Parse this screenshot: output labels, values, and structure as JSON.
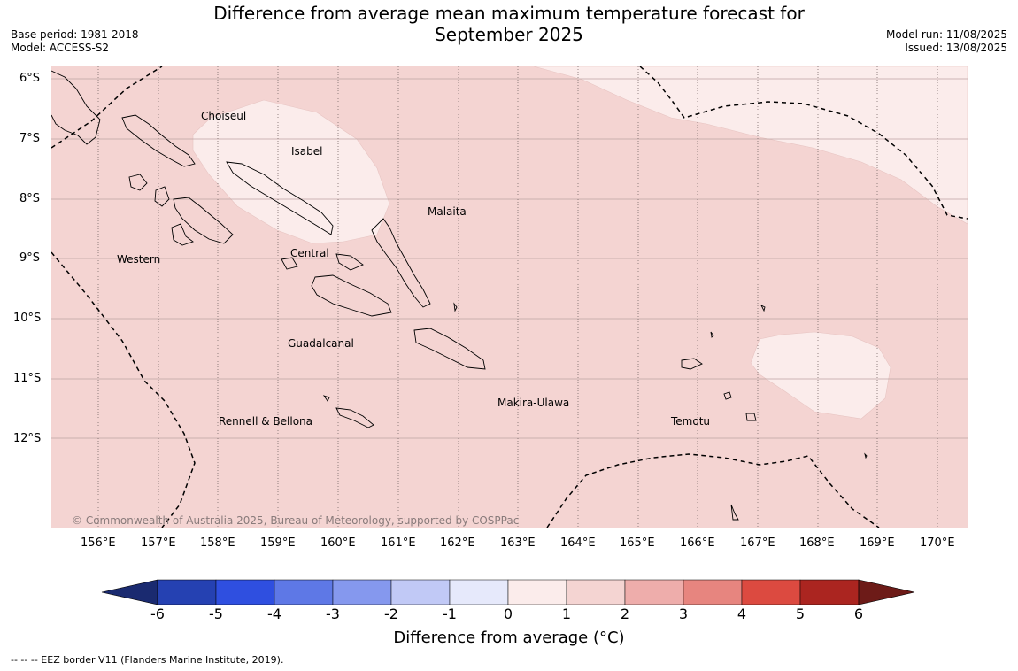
{
  "header": {
    "title_line1": "Difference from average mean maximum temperature forecast for",
    "title_line2": "September 2025",
    "base_period": "Base period: 1981-2018",
    "model": "Model: ACCESS-S2",
    "model_run": "Model run: 11/08/2025",
    "issued": "Issued: 13/08/2025"
  },
  "map": {
    "lat_labels": [
      "6°S",
      "7°S",
      "8°S",
      "9°S",
      "10°S",
      "11°S",
      "12°S"
    ],
    "lon_labels": [
      "156°E",
      "157°E",
      "158°E",
      "159°E",
      "160°E",
      "161°E",
      "162°E",
      "163°E",
      "164°E",
      "165°E",
      "166°E",
      "167°E",
      "168°E",
      "169°E",
      "170°E"
    ],
    "provinces": {
      "choiseul": "Choiseul",
      "isabel": "Isabel",
      "malaita": "Malaita",
      "western": "Western",
      "central": "Central",
      "guadalcanal": "Guadalcanal",
      "makira": "Makira-Ulawa",
      "temotu": "Temotu",
      "rennell": "Rennell & Bellona"
    },
    "copyright": "© Commonwealth of Australia 2025, Bureau of Meteorology, supported by COSPPac",
    "colors": {
      "anomaly_1_2": "#f4d4d2",
      "anomaly_0_1": "#fbeceb"
    }
  },
  "legend": {
    "ticks": [
      "-6",
      "-5",
      "-4",
      "-3",
      "-2",
      "-1",
      "0",
      "1",
      "2",
      "3",
      "4",
      "5",
      "6"
    ],
    "colors": [
      "#1a2a70",
      "#2541b2",
      "#2f4fe0",
      "#5e78e6",
      "#8598ee",
      "#c1c9f6",
      "#e6e9fb",
      "#fbeceb",
      "#f4d4d2",
      "#eeadab",
      "#e7857f",
      "#dc4a40",
      "#ab2520",
      "#6d1b18"
    ],
    "label": "Difference from average (°C)"
  },
  "footnote": "--  --  -- EEZ border V11 (Flanders Marine Institute, 2019)."
}
